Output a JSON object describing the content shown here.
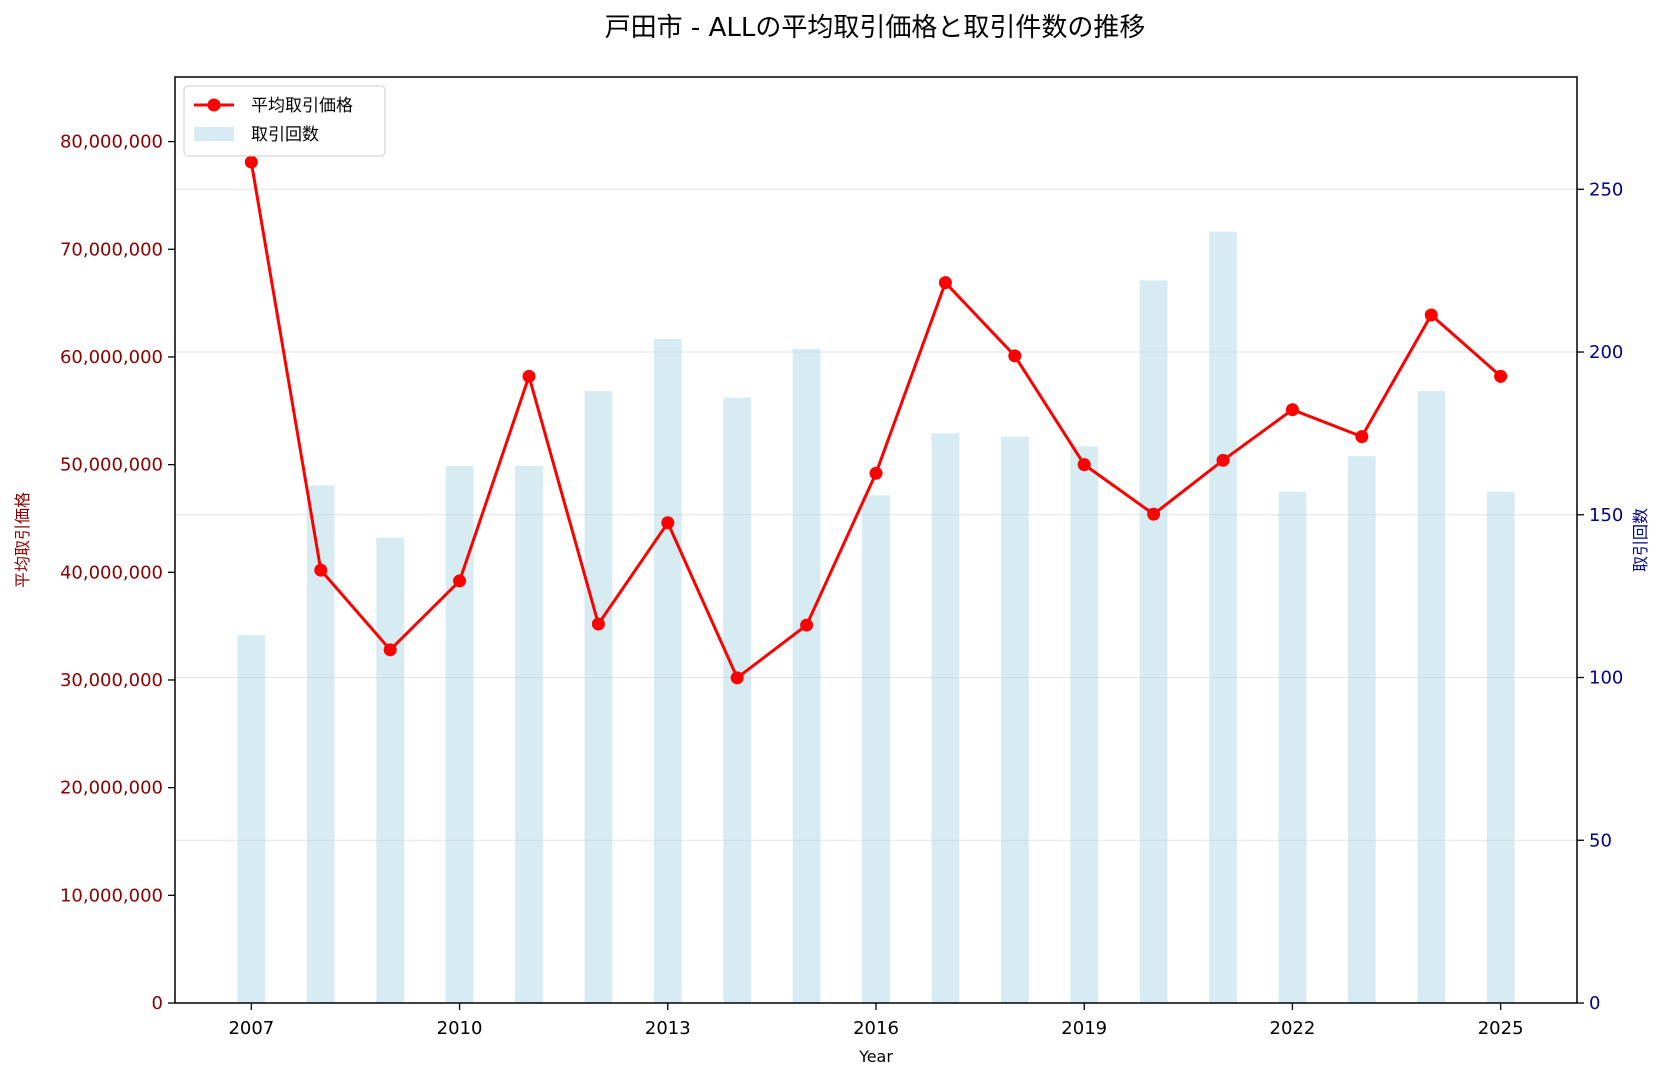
{
  "chart_data": {
    "type": "bar+line",
    "title": "戸田市 - ALLの平均取引価格と取引件数の推移",
    "xlabel": "Year",
    "ylabel_left": "平均取引価格",
    "ylabel_right": "取引回数",
    "x_ticks": [
      2007,
      2010,
      2013,
      2016,
      2019,
      2022,
      2025
    ],
    "x_range": [
      2005.9,
      2026.1
    ],
    "years": [
      2007,
      2008,
      2009,
      2010,
      2011,
      2012,
      2013,
      2014,
      2015,
      2016,
      2017,
      2018,
      2019,
      2020,
      2021,
      2022,
      2023,
      2024,
      2025
    ],
    "series": [
      {
        "name": "平均取引価格",
        "type": "line",
        "axis": "left",
        "color": "#ff0000",
        "values": [
          78100000,
          40200000,
          32800000,
          39200000,
          58200000,
          35200000,
          44600000,
          30200000,
          35100000,
          49200000,
          66900000,
          60100000,
          50000000,
          45400000,
          50400000,
          55100000,
          52600000,
          63900000,
          58200000
        ]
      },
      {
        "name": "取引回数",
        "type": "bar",
        "axis": "right",
        "color": "#add8e6",
        "values": [
          113,
          159,
          143,
          165,
          165,
          188,
          204,
          186,
          201,
          156,
          175,
          174,
          171,
          222,
          237,
          157,
          168,
          188,
          157
        ]
      }
    ],
    "y_left": {
      "range": [
        0,
        86000000
      ],
      "ticks": [
        0,
        10000000,
        20000000,
        30000000,
        40000000,
        50000000,
        60000000,
        70000000,
        80000000
      ],
      "tick_labels": [
        "0",
        "10,000,000",
        "20,000,000",
        "30,000,000",
        "40,000,000",
        "50,000,000",
        "60,000,000",
        "70,000,000",
        "80,000,000"
      ],
      "color": "#8b0000"
    },
    "y_right": {
      "range": [
        0,
        284.5
      ],
      "ticks": [
        0,
        50,
        100,
        150,
        200,
        250
      ],
      "tick_labels": [
        "0",
        "50",
        "100",
        "150",
        "200",
        "250"
      ],
      "color": "#00008b"
    },
    "grid": true,
    "legend_position": "top-left"
  }
}
